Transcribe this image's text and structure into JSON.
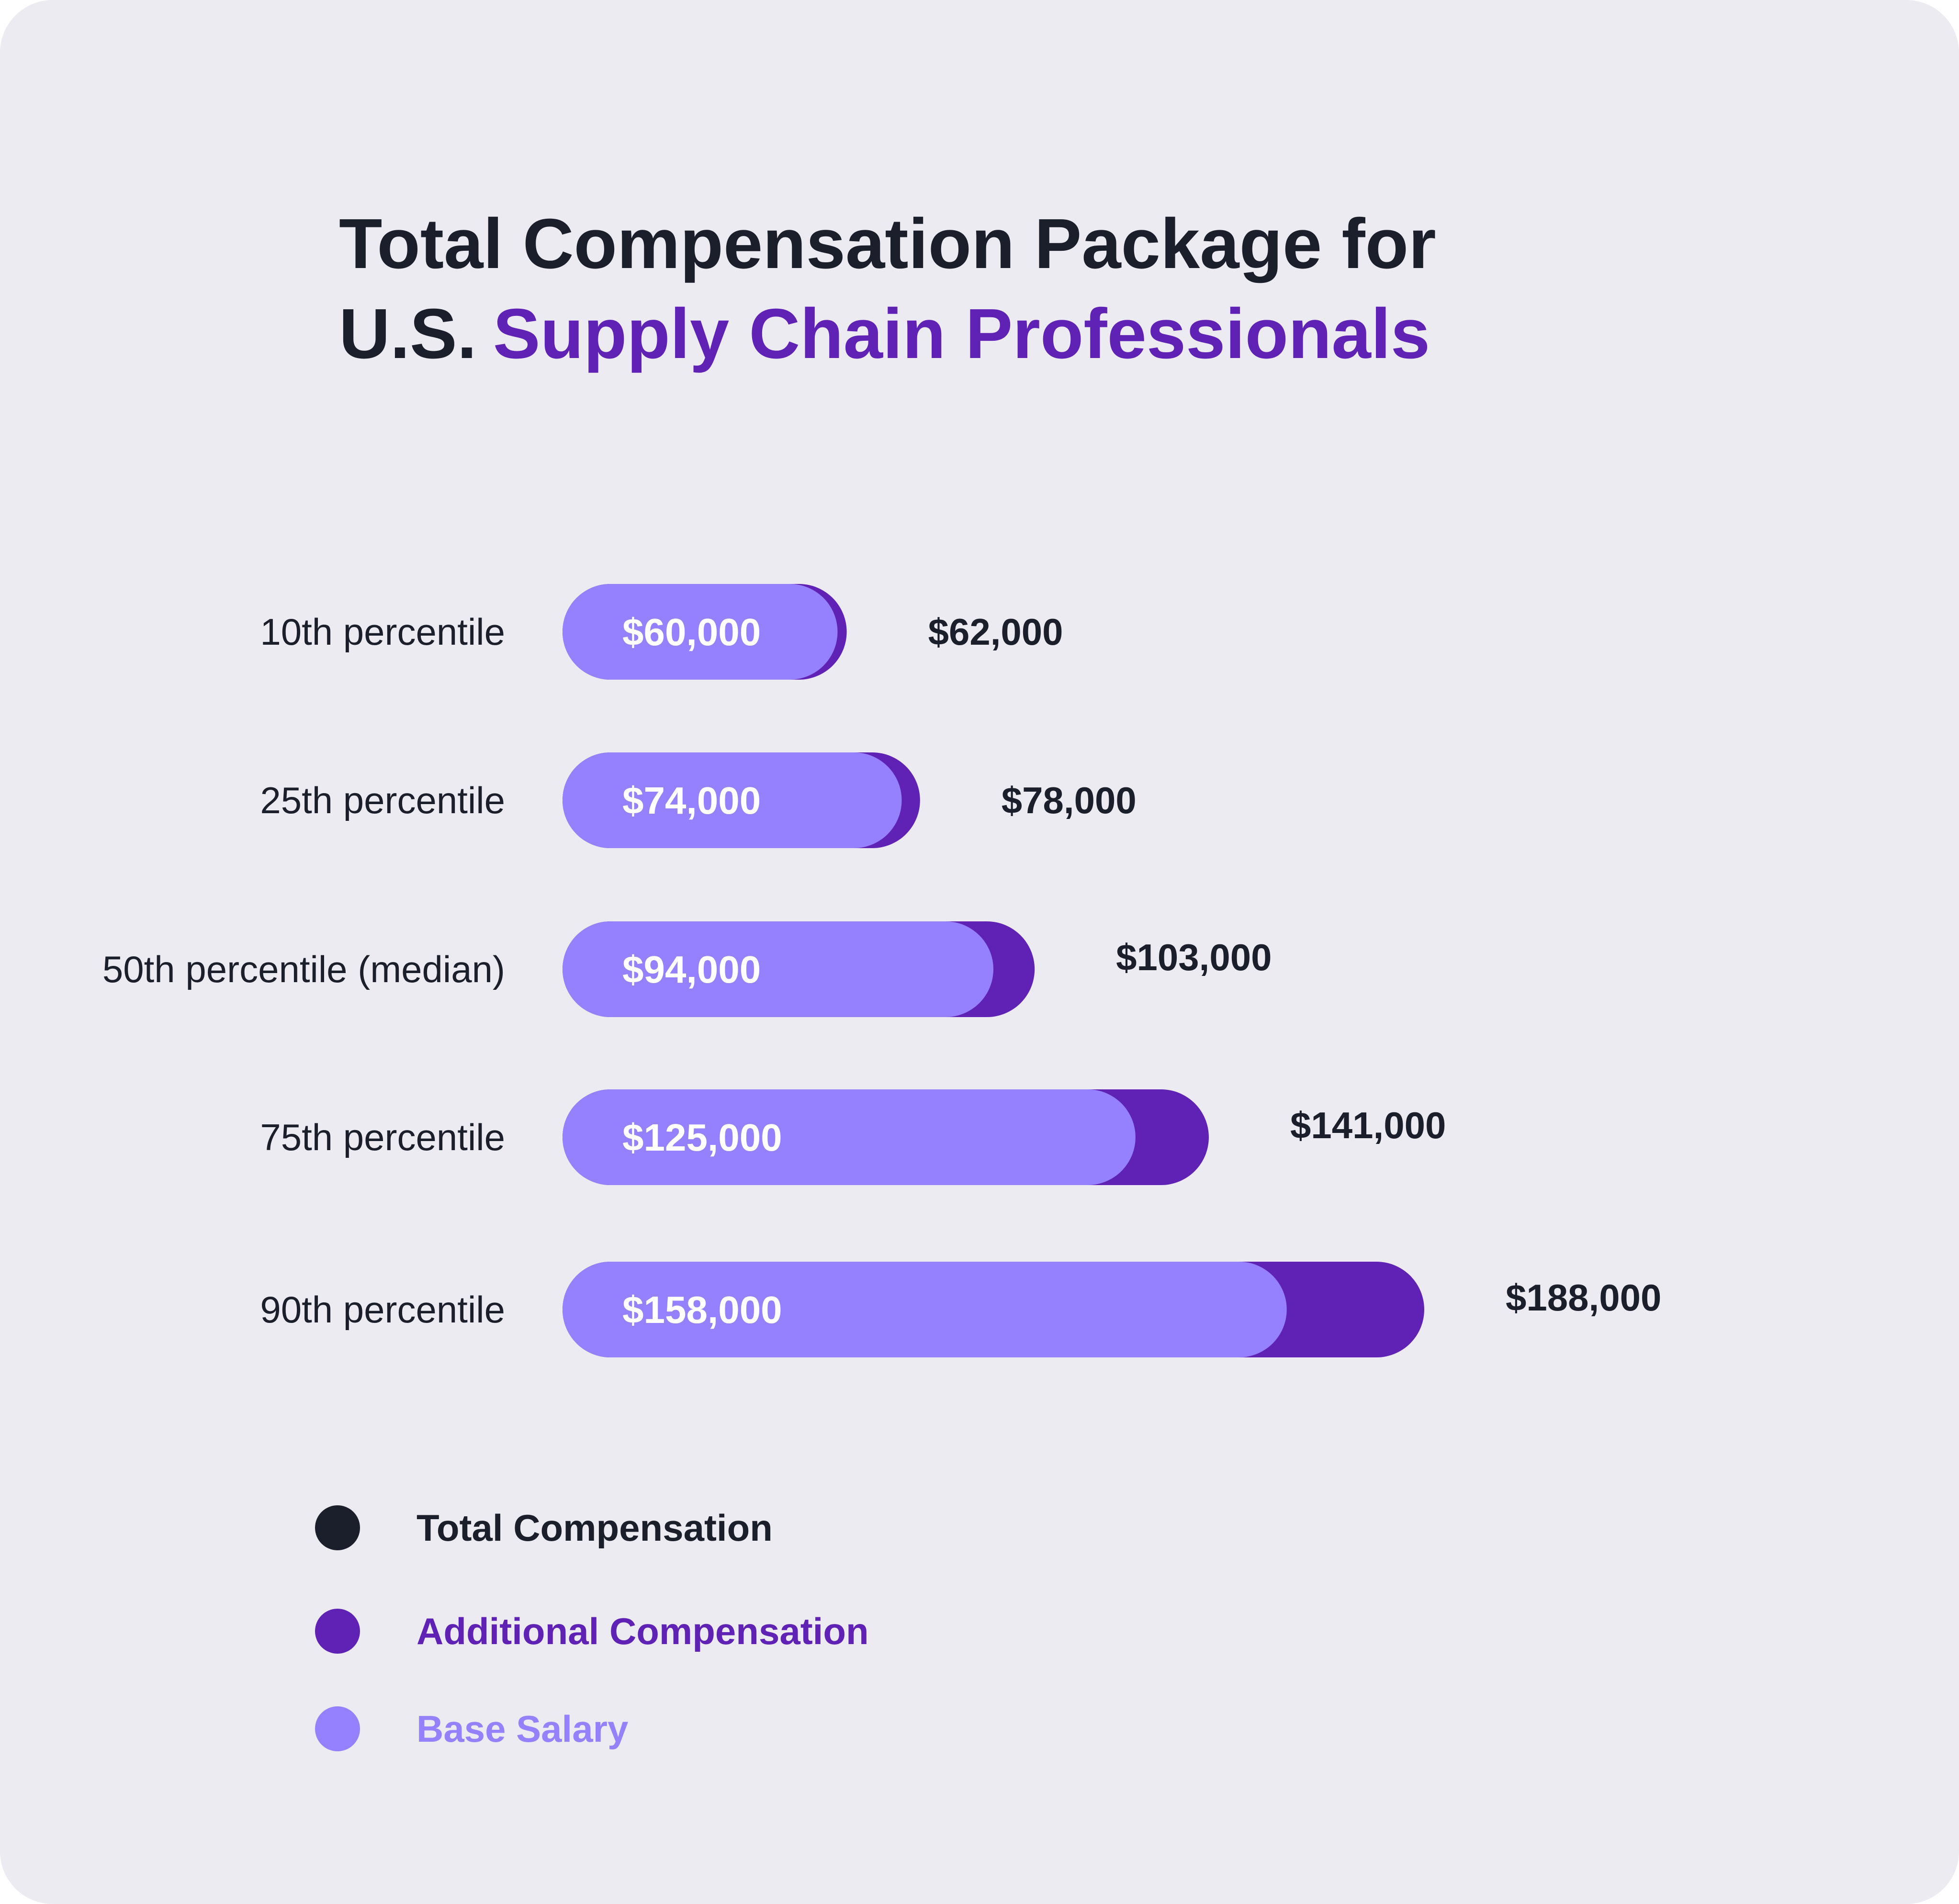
{
  "title": {
    "line1": "Total Compensation Package for",
    "line2_prefix": "U.S.",
    "line2_accent": "Supply Chain Professionals"
  },
  "colors": {
    "background": "#edebf2",
    "title_dark": "#1b1f2b",
    "accent": "#5f22b5",
    "base_salary": "#9580fd",
    "additional": "#5f22b5",
    "total": "#1b1f2b"
  },
  "chart_data": {
    "type": "bar",
    "orientation": "horizontal",
    "stacked": true,
    "title": "Total Compensation Package for U.S. Supply Chain Professionals",
    "categories": [
      "10th percentile",
      "25th percentile",
      "50th percentile (median)",
      "75th percentile",
      "90th percentile"
    ],
    "series": [
      {
        "name": "Base Salary",
        "values": [
          60000,
          74000,
          94000,
          125000,
          158000
        ],
        "labels": [
          "$60,000",
          "$74,000",
          "$94,000",
          "$125,000",
          "$158,000"
        ]
      },
      {
        "name": "Additional Compensation",
        "values": [
          2000,
          4000,
          9000,
          16000,
          30000
        ]
      }
    ],
    "totals": {
      "name": "Total Compensation",
      "values": [
        62000,
        78000,
        103000,
        141000,
        188000
      ],
      "labels": [
        "$62,000",
        "$78,000",
        "$103,000",
        "$141,000",
        "$188,000"
      ]
    },
    "legend": {
      "position": "bottom-left",
      "items": [
        "Total Compensation",
        "Additional Compensation",
        "Base Salary"
      ]
    },
    "grid": false
  }
}
